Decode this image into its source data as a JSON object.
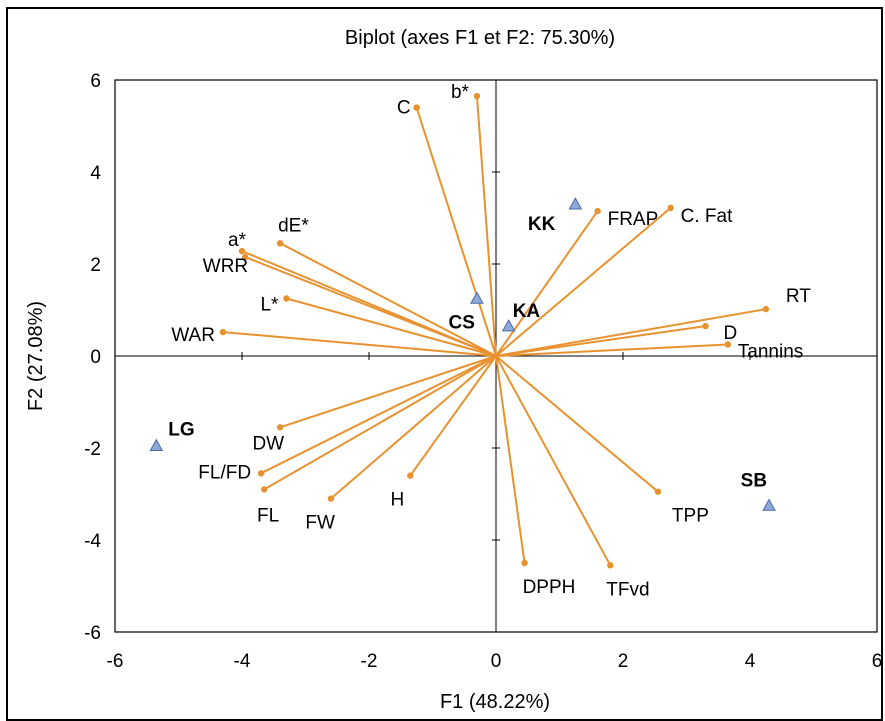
{
  "chart_data": {
    "type": "scatter",
    "title": "Biplot (axes F1 et F2: 75.30%)",
    "xlabel": "F1 (48.22%)",
    "ylabel": "F2 (27.08%)",
    "xlim": [
      -6,
      6
    ],
    "ylim": [
      -6,
      6
    ],
    "xticks": [
      "-6",
      "-4",
      "-2",
      "0",
      "2",
      "4",
      "6"
    ],
    "yticks": [
      "-6",
      "-4",
      "-2",
      "0",
      "2",
      "4",
      "6"
    ],
    "grid": false,
    "colors": {
      "vector": "#e8922f",
      "observation_fill": "#8ea9d9",
      "observation_stroke": "#4a6aa3"
    },
    "variables": [
      {
        "label": "b*",
        "x": -0.3,
        "y": 5.65
      },
      {
        "label": "C",
        "x": -1.25,
        "y": 5.4
      },
      {
        "label": "dE*",
        "x": -3.4,
        "y": 2.45
      },
      {
        "label": "a*",
        "x": -4.0,
        "y": 2.28
      },
      {
        "label": "WRR",
        "x": -3.95,
        "y": 2.15
      },
      {
        "label": "L*",
        "x": -3.3,
        "y": 1.25
      },
      {
        "label": "WAR",
        "x": -4.3,
        "y": 0.52
      },
      {
        "label": "FRAP",
        "x": 1.6,
        "y": 3.15
      },
      {
        "label": "C. Fat",
        "x": 2.75,
        "y": 3.22
      },
      {
        "label": "RT",
        "x": 4.25,
        "y": 1.02
      },
      {
        "label": "D",
        "x": 3.3,
        "y": 0.65
      },
      {
        "label": "Tannins",
        "x": 3.65,
        "y": 0.25
      },
      {
        "label": "DW",
        "x": -3.4,
        "y": -1.55
      },
      {
        "label": "FL/FD",
        "x": -3.7,
        "y": -2.55
      },
      {
        "label": "FL",
        "x": -3.65,
        "y": -2.9
      },
      {
        "label": "FW",
        "x": -2.6,
        "y": -3.1
      },
      {
        "label": "H",
        "x": -1.35,
        "y": -2.6
      },
      {
        "label": "TPP",
        "x": 2.55,
        "y": -2.95
      },
      {
        "label": "DPPH",
        "x": 0.45,
        "y": -4.5
      },
      {
        "label": "TFvd",
        "x": 1.8,
        "y": -4.55
      }
    ],
    "observations": [
      {
        "label": "KK",
        "x": 1.25,
        "y": 3.3
      },
      {
        "label": "CS",
        "x": -0.3,
        "y": 1.25
      },
      {
        "label": "KA",
        "x": 0.2,
        "y": 0.65
      },
      {
        "label": "LG",
        "x": -5.35,
        "y": -1.95
      },
      {
        "label": "SB",
        "x": 4.3,
        "y": -3.25
      }
    ]
  }
}
